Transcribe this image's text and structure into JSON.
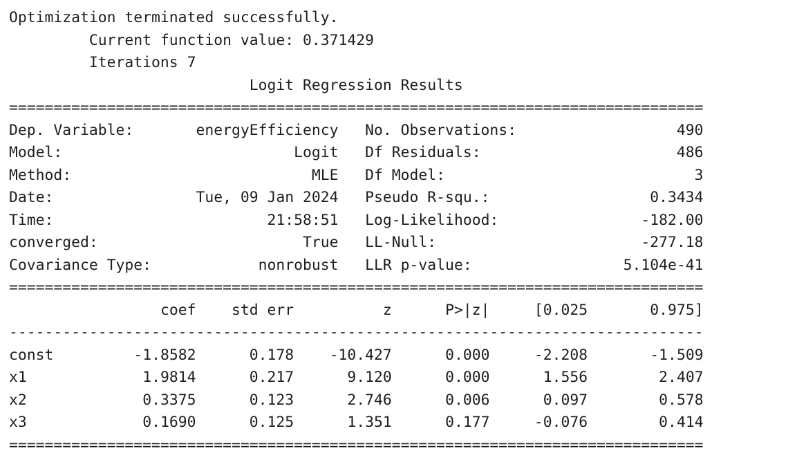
{
  "messages": {
    "status": "Optimization terminated successfully.",
    "function_value_label": "Current function value:",
    "function_value": "0.371429",
    "iterations_label": "Iterations",
    "iterations": "7"
  },
  "results": {
    "title": "Logit Regression Results",
    "info_rows": [
      {
        "left_label": "Dep. Variable:",
        "left_value": "energyEfficiency",
        "right_label": "No. Observations:",
        "right_value": "490"
      },
      {
        "left_label": "Model:",
        "left_value": "Logit",
        "right_label": "Df Residuals:",
        "right_value": "486"
      },
      {
        "left_label": "Method:",
        "left_value": "MLE",
        "right_label": "Df Model:",
        "right_value": "3"
      },
      {
        "left_label": "Date:",
        "left_value": "Tue, 09 Jan 2024",
        "right_label": "Pseudo R-squ.:",
        "right_value": "0.3434"
      },
      {
        "left_label": "Time:",
        "left_value": "21:58:51",
        "right_label": "Log-Likelihood:",
        "right_value": "-182.00"
      },
      {
        "left_label": "converged:",
        "left_value": "True",
        "right_label": "LL-Null:",
        "right_value": "-277.18"
      },
      {
        "left_label": "Covariance Type:",
        "left_value": "nonrobust",
        "right_label": "LLR p-value:",
        "right_value": "5.104e-41"
      }
    ],
    "coef_headers": [
      "",
      "coef",
      "std err",
      "z",
      "P>|z|",
      "[0.025",
      "0.975]"
    ],
    "coef_rows": [
      {
        "name": "const",
        "coef": "-1.8582",
        "std_err": "0.178",
        "z": "-10.427",
        "p": "0.000",
        "ci_low": "-2.208",
        "ci_high": "-1.509"
      },
      {
        "name": "x1",
        "coef": "1.9814",
        "std_err": "0.217",
        "z": "9.120",
        "p": "0.000",
        "ci_low": "1.556",
        "ci_high": "2.407"
      },
      {
        "name": "x2",
        "coef": "0.3375",
        "std_err": "0.123",
        "z": "2.746",
        "p": "0.006",
        "ci_low": "0.097",
        "ci_high": "0.578"
      },
      {
        "name": "x3",
        "coef": "0.1690",
        "std_err": "0.125",
        "z": "1.351",
        "p": "0.177",
        "ci_low": "-0.076",
        "ci_high": "0.414"
      }
    ]
  }
}
